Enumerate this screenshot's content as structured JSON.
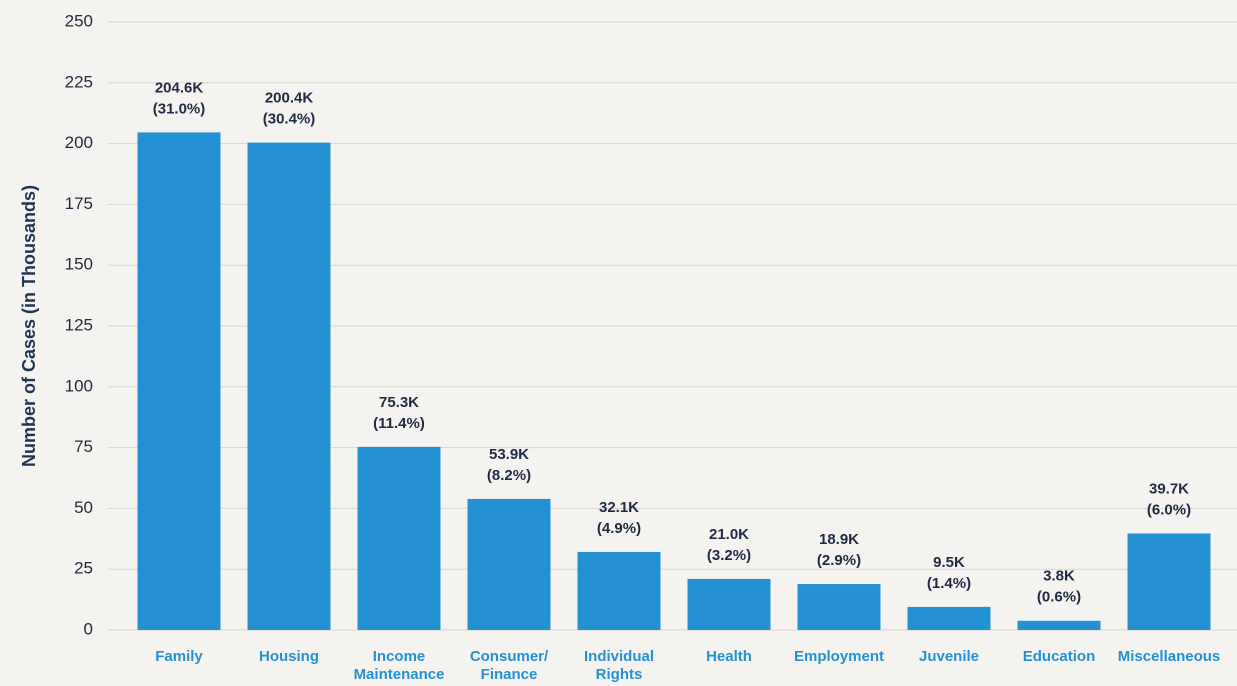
{
  "chart_data": {
    "type": "bar",
    "y_axis_label": "Number of Cases (in Thousands)",
    "categories": [
      "Family",
      "Housing",
      "Income Maintenance",
      "Consumer/ Finance",
      "Individual Rights",
      "Health",
      "Employment",
      "Juvenile",
      "Education",
      "Miscellaneous"
    ],
    "values": [
      204.6,
      200.4,
      75.3,
      53.9,
      32.1,
      21.0,
      18.9,
      9.5,
      3.8,
      39.7
    ],
    "value_labels": [
      "204.6K",
      "200.4K",
      "75.3K",
      "53.9K",
      "32.1K",
      "21.0K",
      "18.9K",
      "9.5K",
      "3.8K",
      "39.7K"
    ],
    "share_labels": [
      "(31.0%)",
      "(30.4%)",
      "(11.4%)",
      "(8.2%)",
      "(4.9%)",
      "(3.2%)",
      "(2.9%)",
      "(1.4%)",
      "(0.6%)",
      "(6.0%)"
    ],
    "color": "#2391d2",
    "ylim": [
      0,
      250
    ],
    "yticks": [
      0,
      25,
      50,
      75,
      100,
      125,
      150,
      175,
      200,
      225,
      250
    ],
    "grid": true
  }
}
